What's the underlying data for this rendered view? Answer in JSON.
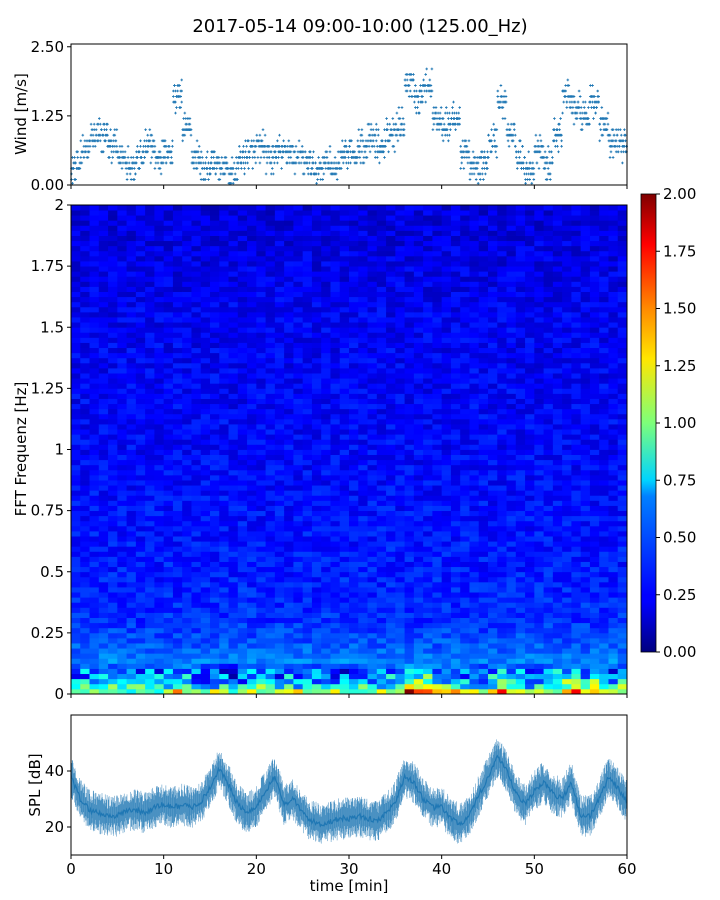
{
  "figure": {
    "title": "2017-05-14 09:00-10:00 (125.00_Hz)"
  },
  "chart_data": [
    {
      "type": "scatter",
      "panel": "wind",
      "title": "",
      "xlabel": "",
      "ylabel": "Wind [m/s]",
      "xlim": [
        0,
        60
      ],
      "ylim": [
        0,
        2.55
      ],
      "yticks": [
        0.0,
        1.25,
        2.5
      ],
      "ytick_labels": [
        "0.00",
        "1.25",
        "2.50"
      ],
      "xticks": [
        0,
        10,
        20,
        30,
        40,
        50,
        60
      ],
      "marker": "+",
      "color": "#1f77b4",
      "series": [
        {
          "x": [
            0.5,
            1.5,
            2.5,
            3.5,
            4.5,
            5.5,
            6.5,
            7.5,
            8.5,
            9.5,
            10.5,
            11.5,
            12.5,
            13.5,
            14.5,
            15.5,
            16.5,
            17.5,
            18.5,
            19.5,
            20.5,
            21.5,
            22.5,
            23.5,
            24.5,
            25.5,
            26.5,
            27.5,
            28.5,
            29.5,
            30.5,
            31.5,
            32.5,
            33.5,
            34.5,
            35.5,
            36.5,
            37.5,
            38.5,
            39.5,
            40.5,
            41.5,
            42.5,
            43.5,
            44.5,
            45.5,
            46.5,
            47.5,
            48.5,
            49.5,
            50.5,
            51.5,
            52.5,
            53.5,
            54.5,
            55.5,
            56.5,
            57.5,
            58.5,
            59.5
          ],
          "values": [
            0.3,
            0.6,
            0.85,
            0.9,
            0.7,
            0.5,
            0.4,
            0.5,
            0.7,
            0.5,
            0.6,
            1.6,
            1.0,
            0.5,
            0.3,
            0.4,
            0.3,
            0.2,
            0.5,
            0.6,
            0.7,
            0.5,
            0.6,
            0.6,
            0.5,
            0.4,
            0.3,
            0.4,
            0.3,
            0.5,
            0.6,
            0.7,
            0.8,
            0.7,
            0.9,
            1.1,
            1.9,
            1.6,
            1.8,
            1.2,
            1.1,
            1.2,
            0.6,
            0.3,
            0.4,
            0.8,
            1.5,
            0.9,
            0.5,
            0.3,
            0.6,
            0.4,
            0.9,
            1.6,
            1.4,
            1.2,
            1.5,
            1.1,
            0.8,
            0.7
          ]
        }
      ]
    },
    {
      "type": "heatmap",
      "panel": "spectrogram",
      "title": "",
      "xlabel": "",
      "ylabel": "FFT Frequenz [Hz]",
      "xlim": [
        0,
        60
      ],
      "ylim": [
        0,
        2
      ],
      "yticks": [
        0,
        0.25,
        0.5,
        0.75,
        1,
        1.25,
        1.5,
        1.75,
        2
      ],
      "ytick_labels": [
        "0",
        "0.25",
        "0.5",
        "0.75",
        "1",
        "1.25",
        "1.5",
        "1.75",
        "2"
      ],
      "colormap": "jet",
      "colorbar": {
        "range": [
          0.0,
          2.0
        ],
        "ticks": [
          0.0,
          0.25,
          0.5,
          0.75,
          1.0,
          1.25,
          1.5,
          1.75,
          2.0
        ],
        "tick_labels": [
          "0.00",
          "0.25",
          "0.50",
          "0.75",
          "1.00",
          "1.25",
          "1.50",
          "1.75",
          "2.00"
        ]
      },
      "frequency_profile": {
        "freq": [
          0,
          0.02,
          0.05,
          0.1,
          0.2,
          0.3,
          0.5,
          1.0,
          1.5,
          2.0
        ],
        "level": [
          1.7,
          1.2,
          0.8,
          0.55,
          0.42,
          0.34,
          0.3,
          0.25,
          0.23,
          0.18
        ]
      }
    },
    {
      "type": "line",
      "panel": "spl",
      "title": "",
      "xlabel": "time [min]",
      "ylabel": "SPL [dB]",
      "xlim": [
        0,
        60
      ],
      "ylim": [
        10,
        60
      ],
      "yticks": [
        20,
        40
      ],
      "ytick_labels": [
        "20",
        "40"
      ],
      "xticks": [
        0,
        10,
        20,
        30,
        40,
        50,
        60
      ],
      "xtick_labels": [
        "0",
        "10",
        "20",
        "30",
        "40",
        "50",
        "60"
      ],
      "color": "#1f77b4",
      "series": [
        {
          "x": [
            0,
            1,
            2,
            3,
            4,
            5,
            6,
            7,
            8,
            9,
            10,
            11,
            12,
            13,
            14,
            15,
            16,
            17,
            18,
            19,
            20,
            21,
            22,
            23,
            24,
            25,
            26,
            27,
            28,
            29,
            30,
            31,
            32,
            33,
            34,
            35,
            36,
            37,
            38,
            39,
            40,
            41,
            42,
            43,
            44,
            45,
            46,
            47,
            48,
            49,
            50,
            51,
            52,
            53,
            54,
            55,
            56,
            57,
            58,
            59,
            60
          ],
          "values": [
            38,
            30,
            26,
            25,
            24,
            24,
            26,
            26,
            25,
            27,
            28,
            27,
            28,
            27,
            29,
            34,
            41,
            35,
            28,
            25,
            27,
            33,
            38,
            28,
            30,
            25,
            22,
            21,
            22,
            23,
            23,
            24,
            23,
            22,
            25,
            29,
            38,
            36,
            30,
            27,
            27,
            23,
            21,
            24,
            31,
            38,
            45,
            40,
            32,
            28,
            33,
            36,
            32,
            30,
            36,
            24,
            24,
            30,
            38,
            34,
            29
          ],
          "band": 5
        }
      ]
    }
  ]
}
